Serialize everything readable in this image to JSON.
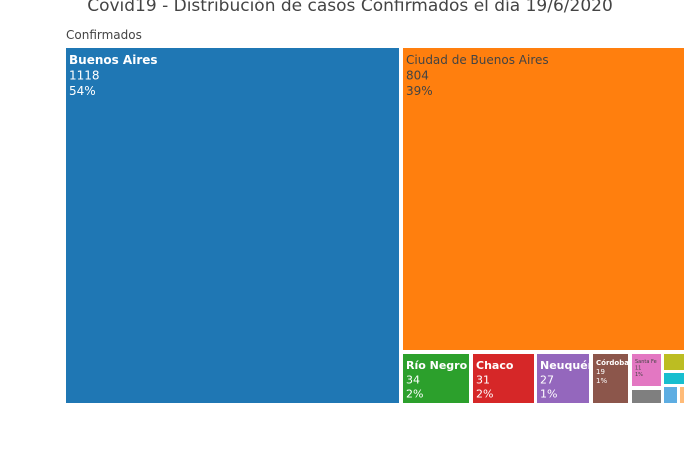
{
  "chart_data": {
    "type": "treemap",
    "title": "Covid19 - Distribución de casos Confirmados el día 19/6/2020",
    "root_label": "Confirmados",
    "items": [
      {
        "label": "Buenos Aires",
        "value": 1118,
        "percent": "54%",
        "color": "#1f77b4",
        "text_color": "#ffffff"
      },
      {
        "label": "Ciudad de Buenos Aires",
        "value": 804,
        "percent": "39%",
        "color": "#ff7f0e",
        "text_color": "#444444"
      },
      {
        "label": "Río Negro",
        "value": 34,
        "percent": "2%",
        "color": "#2ca02c",
        "text_color": "#ffffff"
      },
      {
        "label": "Chaco",
        "value": 31,
        "percent": "2%",
        "color": "#d62728",
        "text_color": "#ffffff"
      },
      {
        "label": "Neuquén",
        "value": 27,
        "percent": "1%",
        "color": "#9467bd",
        "text_color": "#ffffff"
      },
      {
        "label": "Córdoba",
        "value": 19,
        "percent": "1%",
        "color": "#8c564b",
        "text_color": "#ffffff"
      },
      {
        "label": "Santa Fe",
        "value": 11,
        "percent": "1%",
        "color": "#e377c2",
        "text_color": "#444444"
      },
      {
        "label": "",
        "value": 6,
        "percent": "",
        "color": "#bcbd22",
        "text_color": "#444444"
      },
      {
        "label": "",
        "value": 5,
        "percent": "",
        "color": "#7f7f7f",
        "text_color": "#ffffff"
      },
      {
        "label": "",
        "value": 3,
        "percent": "",
        "color": "#17becf",
        "text_color": "#444444"
      },
      {
        "label": "",
        "value": 3,
        "percent": "",
        "color": "#5dade2",
        "text_color": "#ffffff"
      },
      {
        "label": "",
        "value": 1,
        "percent": "",
        "color": "#ffbb78",
        "text_color": "#444444"
      }
    ]
  }
}
